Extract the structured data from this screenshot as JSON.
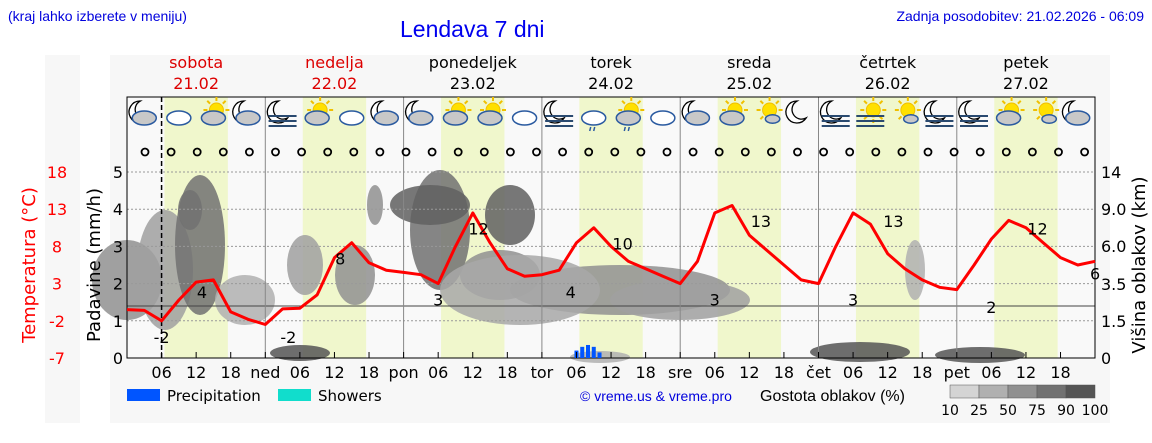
{
  "header": {
    "region_hint": "(kraj lahko izberete v meniju)",
    "title": "Lendava 7 dni",
    "last_update": "Zadnja posodobitev: 21.02.2026 - 06:09"
  },
  "days": [
    {
      "name": "sobota",
      "date": "21.02",
      "weekend": true
    },
    {
      "name": "nedelja",
      "date": "22.02",
      "weekend": true
    },
    {
      "name": "ponedeljek",
      "date": "23.02",
      "weekend": false
    },
    {
      "name": "torek",
      "date": "24.02",
      "weekend": false
    },
    {
      "name": "sreda",
      "date": "25.02",
      "weekend": false
    },
    {
      "name": "četrtek",
      "date": "26.02",
      "weekend": false
    },
    {
      "name": "petek",
      "date": "27.02",
      "weekend": false
    }
  ],
  "weather_icons": [
    "moon-cloud",
    "cloud",
    "sun-cloud",
    "moon-cloud",
    "moon-fog",
    "sun-cloud",
    "cloud",
    "moon-cloud",
    "moon-cloud",
    "sun-cloud",
    "sun-cloud",
    "cloud",
    "moon-fog",
    "cloud-rain",
    "sun-cloud-rain",
    "cloud",
    "moon-cloud",
    "sun-cloud",
    "sun-small-cloud",
    "moon",
    "moon-fog",
    "sun-fog",
    "sun-small-cloud",
    "moon-fog",
    "moon-fog",
    "sun-cloud",
    "sun-small-cloud",
    "moon-cloud"
  ],
  "colors": {
    "temperature": "#ff0000",
    "precipitation": "#0055ff",
    "showers": "#11ddcc",
    "daylight": "#f0f7cc",
    "weekend_day": "#dd0000",
    "title": "#0000ee"
  },
  "legend": {
    "precipitation": "Precipitation",
    "showers": "Showers",
    "copyright": "© vreme.us & vreme.pro",
    "cloud_density_title": "Gostota oblakov (%)",
    "cloud_density_levels": [
      "10",
      "25",
      "50",
      "75",
      "90",
      "100"
    ],
    "cloud_density_colors": [
      "#d4d4d4",
      "#b0b0b0",
      "#909090",
      "#717171",
      "#555555"
    ]
  },
  "chart_data": {
    "type": "line",
    "title": "Lendava 7 dni",
    "x_tick_labels": [
      "06",
      "12",
      "18",
      "ned",
      "06",
      "12",
      "18",
      "pon",
      "06",
      "12",
      "18",
      "tor",
      "06",
      "12",
      "18",
      "sre",
      "06",
      "12",
      "18",
      "čet",
      "06",
      "12",
      "18",
      "pet",
      "06",
      "12",
      "18"
    ],
    "y_left_precip": {
      "label": "Padavine (mm/h)",
      "ticks": [
        "0",
        "1",
        "2",
        "3",
        "4",
        "5"
      ],
      "range": [
        0,
        5
      ]
    },
    "y_left_temp": {
      "label": "Temperatura (°C)",
      "ticks": [
        "-7",
        "-2",
        "3",
        "8",
        "13",
        "18"
      ],
      "range": [
        -7,
        18
      ]
    },
    "y_right": {
      "label": "Višina oblakov (km)",
      "ticks": [
        "0",
        "1.5",
        "3.5",
        "6.0",
        "9.0",
        "14"
      ]
    },
    "grid": true,
    "series": [
      {
        "name": "Temperatura",
        "unit": "°C",
        "hours": [
          0,
          3,
          6,
          9,
          12,
          15,
          18,
          21,
          24,
          27,
          30,
          33,
          36,
          39,
          42,
          45,
          48,
          51,
          54,
          57,
          60,
          63,
          66,
          69,
          72,
          75,
          78,
          81,
          84,
          87,
          90,
          93,
          96,
          99,
          102,
          105,
          108,
          111,
          114,
          117,
          120,
          123,
          126,
          129,
          132,
          135,
          138,
          141,
          144,
          147,
          150,
          153,
          156,
          159,
          162,
          165,
          168
        ],
        "values": [
          -0.5,
          -0.6,
          -2,
          0.8,
          3.2,
          3.5,
          -0.8,
          -1.8,
          -2.5,
          -0.4,
          -0.3,
          1.5,
          6.5,
          8.5,
          5.8,
          4.8,
          4.5,
          4.2,
          3,
          8,
          12.5,
          8.5,
          5,
          4,
          4.2,
          4.8,
          8.5,
          10.5,
          8,
          6,
          5,
          4,
          3,
          6,
          12.5,
          13.5,
          9.5,
          7.5,
          5.5,
          3.5,
          3,
          8,
          12.5,
          11,
          7,
          5,
          3.5,
          2.5,
          2.2,
          5.5,
          9,
          11.5,
          10.5,
          8.5,
          6.5,
          5.5,
          6
        ]
      },
      {
        "name": "Precipitation",
        "unit": "mm/h",
        "hours": [
          78,
          79,
          80,
          81,
          82
        ],
        "values": [
          0.2,
          0.3,
          0.35,
          0.3,
          0.15
        ]
      }
    ],
    "annotations": [
      {
        "hour": 6,
        "text": "-2"
      },
      {
        "hour": 13,
        "text": "4"
      },
      {
        "hour": 28,
        "text": "-2"
      },
      {
        "hour": 37,
        "text": "8"
      },
      {
        "hour": 54,
        "text": "3"
      },
      {
        "hour": 61,
        "text": "12"
      },
      {
        "hour": 77,
        "text": "4"
      },
      {
        "hour": 86,
        "text": "10"
      },
      {
        "hour": 102,
        "text": "3"
      },
      {
        "hour": 110,
        "text": "13"
      },
      {
        "hour": 126,
        "text": "3"
      },
      {
        "hour": 133,
        "text": "13"
      },
      {
        "hour": 150,
        "text": "2"
      },
      {
        "hour": 158,
        "text": "12"
      },
      {
        "hour": 168,
        "text": "6"
      }
    ],
    "current_time_hour": 6,
    "legend_position": "bottom"
  }
}
